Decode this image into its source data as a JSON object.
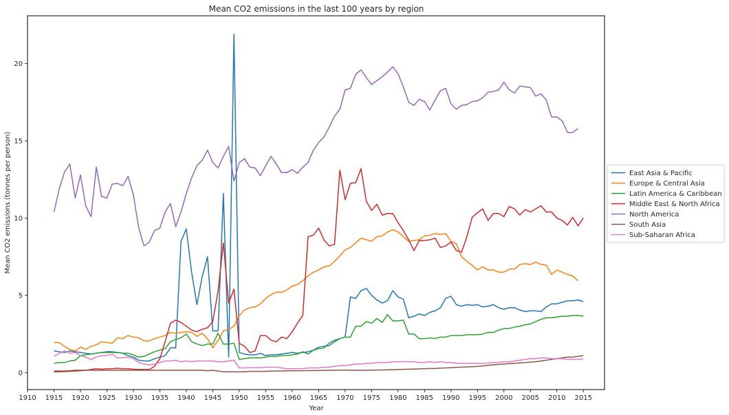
{
  "chart_data": {
    "type": "line",
    "title": "Mean CO2 emissions in the last 100 years by region",
    "xlabel": "Year",
    "ylabel": "Mean CO2 emissions (tonnes per person)",
    "xlim": [
      1910,
      2019
    ],
    "ylim": [
      -1.1,
      23.1
    ],
    "xticks": [
      1910,
      1915,
      1920,
      1925,
      1930,
      1935,
      1940,
      1945,
      1950,
      1955,
      1960,
      1965,
      1970,
      1975,
      1980,
      1985,
      1990,
      1995,
      2000,
      2005,
      2010,
      2015
    ],
    "yticks": [
      0,
      5,
      10,
      15,
      20
    ],
    "legend_position": "center-right",
    "x_start": 1915,
    "x_end": 2014,
    "series": [
      {
        "name": "East Asia & Pacific",
        "color": "#1f77b4",
        "values": [
          1.4,
          1.35,
          1.3,
          1.4,
          1.35,
          1.3,
          1.25,
          1.2,
          1.25,
          1.3,
          1.35,
          1.35,
          1.3,
          1.25,
          1.1,
          1.0,
          0.8,
          0.75,
          0.75,
          0.9,
          1.0,
          1.1,
          1.6,
          1.6,
          8.5,
          9.3,
          6.5,
          4.4,
          6.2,
          7.5,
          2.7,
          2.7,
          11.6,
          1.0,
          21.9,
          1.3,
          1.2,
          1.15,
          1.15,
          1.25,
          1.1,
          1.15,
          1.15,
          1.2,
          1.25,
          1.3,
          1.25,
          1.3,
          1.35,
          1.45,
          1.65,
          1.7,
          1.75,
          2.0,
          2.2,
          2.3,
          4.9,
          4.8,
          5.3,
          5.45,
          5.0,
          4.7,
          4.5,
          4.65,
          5.3,
          4.9,
          4.75,
          3.55,
          3.65,
          3.8,
          3.7,
          3.9,
          4.0,
          4.2,
          4.8,
          4.95,
          4.4,
          4.3,
          4.4,
          4.35,
          4.4,
          4.25,
          4.3,
          4.4,
          4.2,
          4.1,
          4.2,
          4.2,
          4.05,
          3.95,
          4.0,
          4.0,
          3.95,
          4.25,
          4.45,
          4.45,
          4.55,
          4.65,
          4.65,
          4.7,
          4.6
        ]
      },
      {
        "name": "Europe & Central Asia",
        "color": "#ff7f0e",
        "values": [
          1.95,
          1.95,
          1.7,
          1.5,
          1.4,
          1.65,
          1.5,
          1.7,
          1.8,
          2.0,
          1.95,
          1.9,
          2.25,
          2.2,
          2.4,
          2.3,
          2.25,
          2.05,
          2.05,
          2.2,
          2.3,
          2.4,
          2.6,
          2.55,
          2.6,
          2.65,
          2.6,
          2.35,
          2.55,
          2.2,
          1.6,
          2.1,
          2.7,
          2.8,
          3.0,
          3.7,
          4.05,
          4.2,
          4.25,
          4.45,
          4.8,
          5.05,
          5.2,
          5.2,
          5.35,
          5.6,
          5.7,
          5.95,
          6.25,
          6.5,
          6.65,
          6.85,
          6.9,
          7.2,
          7.55,
          7.95,
          8.1,
          8.4,
          8.7,
          8.6,
          8.5,
          8.8,
          8.85,
          9.1,
          9.25,
          9.1,
          8.8,
          8.5,
          8.55,
          8.6,
          8.85,
          8.9,
          9.0,
          8.95,
          9.0,
          8.5,
          8.35,
          7.5,
          7.2,
          6.95,
          6.65,
          6.85,
          6.65,
          6.65,
          6.5,
          6.5,
          6.7,
          6.7,
          7.0,
          7.05,
          7.0,
          7.15,
          7.0,
          6.95,
          6.35,
          6.65,
          6.5,
          6.35,
          6.25,
          5.95
        ]
      },
      {
        "name": "Latin America & Caribbean",
        "color": "#2ca02c",
        "values": [
          0.6,
          0.65,
          0.65,
          0.75,
          0.8,
          1.1,
          1.15,
          1.2,
          1.25,
          1.3,
          1.3,
          1.3,
          1.3,
          1.25,
          1.25,
          1.15,
          1.0,
          1.05,
          1.2,
          1.35,
          1.45,
          1.55,
          2.0,
          2.15,
          2.25,
          2.5,
          2.0,
          1.85,
          1.75,
          1.85,
          1.85,
          2.55,
          1.85,
          1.85,
          1.9,
          0.85,
          0.9,
          0.95,
          0.95,
          0.95,
          1.0,
          1.05,
          1.05,
          1.1,
          1.1,
          1.15,
          1.2,
          1.35,
          1.2,
          1.45,
          1.55,
          1.6,
          1.9,
          2.1,
          2.2,
          2.3,
          2.3,
          3.0,
          3.0,
          3.3,
          3.2,
          3.5,
          3.25,
          3.75,
          3.35,
          3.35,
          3.4,
          2.5,
          2.5,
          2.2,
          2.2,
          2.25,
          2.2,
          2.3,
          2.3,
          2.4,
          2.4,
          2.4,
          2.45,
          2.45,
          2.45,
          2.5,
          2.6,
          2.6,
          2.75,
          2.85,
          2.85,
          2.95,
          3.0,
          3.1,
          3.15,
          3.3,
          3.45,
          3.55,
          3.55,
          3.6,
          3.65,
          3.65,
          3.7,
          3.7,
          3.65
        ]
      },
      {
        "name": "Middle East & North Africa",
        "color": "#d62728",
        "values": [
          0.1,
          0.1,
          0.1,
          0.12,
          0.15,
          0.15,
          0.15,
          0.2,
          0.25,
          0.22,
          0.25,
          0.25,
          0.28,
          0.25,
          0.25,
          0.22,
          0.2,
          0.2,
          0.2,
          0.4,
          0.9,
          2.0,
          3.2,
          3.4,
          3.25,
          3.0,
          2.75,
          2.65,
          2.8,
          2.9,
          3.3,
          5.3,
          8.4,
          4.5,
          5.4,
          1.9,
          1.7,
          1.3,
          1.4,
          2.4,
          2.4,
          2.1,
          2.0,
          2.3,
          2.2,
          2.65,
          3.2,
          3.7,
          8.8,
          8.9,
          9.35,
          8.6,
          8.2,
          8.3,
          13.1,
          11.2,
          12.25,
          12.3,
          13.2,
          11.1,
          10.5,
          10.9,
          10.2,
          10.3,
          10.3,
          9.7,
          9.2,
          8.6,
          7.9,
          8.55,
          8.55,
          8.6,
          8.7,
          8.1,
          8.2,
          8.45,
          7.9,
          7.8,
          8.8,
          10.05,
          10.35,
          10.6,
          9.85,
          10.3,
          10.3,
          10.1,
          10.75,
          10.6,
          10.2,
          10.55,
          10.4,
          10.6,
          10.8,
          10.4,
          10.4,
          10.0,
          9.85,
          9.55,
          10.05,
          9.5,
          10.0
        ]
      },
      {
        "name": "North America",
        "color": "#9467bd",
        "values": [
          10.4,
          11.9,
          13.0,
          13.5,
          11.3,
          12.8,
          10.8,
          10.1,
          13.3,
          11.4,
          11.3,
          12.2,
          12.25,
          12.1,
          12.7,
          11.5,
          9.4,
          8.2,
          8.45,
          9.2,
          9.35,
          10.4,
          10.95,
          9.45,
          10.4,
          11.6,
          12.6,
          13.4,
          13.75,
          14.4,
          13.6,
          13.25,
          14.0,
          14.65,
          12.4,
          13.6,
          13.85,
          13.3,
          13.25,
          12.75,
          13.4,
          14.0,
          13.5,
          12.95,
          12.95,
          13.15,
          12.9,
          13.3,
          13.6,
          14.4,
          14.9,
          15.25,
          15.9,
          16.6,
          17.05,
          18.3,
          18.4,
          19.3,
          19.6,
          19.1,
          18.65,
          18.9,
          19.15,
          19.45,
          19.8,
          19.35,
          18.5,
          17.5,
          17.3,
          17.7,
          17.55,
          17.0,
          17.65,
          18.25,
          18.4,
          17.4,
          17.05,
          17.3,
          17.35,
          17.55,
          17.6,
          17.8,
          18.15,
          18.2,
          18.3,
          18.8,
          18.3,
          18.1,
          18.55,
          18.5,
          18.45,
          17.9,
          18.05,
          17.65,
          16.55,
          16.55,
          16.3,
          15.55,
          15.55,
          15.8
        ]
      },
      {
        "name": "South Asia",
        "color": "#8c564b",
        "values": [
          0.05,
          0.05,
          0.06,
          0.08,
          0.1,
          0.12,
          0.15,
          0.15,
          0.15,
          0.15,
          0.15,
          0.15,
          0.15,
          0.15,
          0.15,
          0.15,
          0.15,
          0.15,
          0.15,
          0.15,
          0.15,
          0.15,
          0.15,
          0.15,
          0.15,
          0.15,
          0.15,
          0.15,
          0.15,
          0.12,
          0.15,
          0.1,
          0.05,
          0.05,
          0.05,
          0.05,
          0.05,
          0.08,
          0.08,
          0.08,
          0.08,
          0.1,
          0.1,
          0.1,
          0.12,
          0.12,
          0.12,
          0.12,
          0.13,
          0.13,
          0.14,
          0.14,
          0.15,
          0.15,
          0.16,
          0.16,
          0.15,
          0.15,
          0.15,
          0.15,
          0.16,
          0.16,
          0.17,
          0.18,
          0.19,
          0.2,
          0.21,
          0.22,
          0.23,
          0.24,
          0.25,
          0.26,
          0.27,
          0.29,
          0.3,
          0.32,
          0.34,
          0.35,
          0.37,
          0.38,
          0.4,
          0.43,
          0.47,
          0.5,
          0.53,
          0.55,
          0.58,
          0.6,
          0.63,
          0.65,
          0.68,
          0.7,
          0.75,
          0.8,
          0.85,
          0.9,
          0.95,
          1.0,
          1.0,
          1.05,
          1.1
        ]
      },
      {
        "name": "Sub-Saharan Africa",
        "color": "#e377c2",
        "values": [
          1.05,
          1.25,
          1.4,
          1.25,
          1.3,
          1.1,
          1.0,
          0.85,
          1.0,
          1.1,
          1.1,
          1.2,
          0.95,
          0.95,
          1.0,
          0.9,
          0.65,
          0.55,
          0.5,
          0.55,
          0.65,
          0.75,
          0.75,
          0.8,
          0.7,
          0.75,
          0.7,
          0.75,
          0.75,
          0.75,
          0.75,
          0.7,
          0.7,
          0.75,
          0.8,
          0.3,
          0.3,
          0.32,
          0.32,
          0.32,
          0.35,
          0.35,
          0.35,
          0.3,
          0.25,
          0.25,
          0.25,
          0.25,
          0.3,
          0.3,
          0.3,
          0.35,
          0.35,
          0.4,
          0.45,
          0.45,
          0.5,
          0.55,
          0.55,
          0.6,
          0.6,
          0.65,
          0.65,
          0.65,
          0.7,
          0.7,
          0.7,
          0.7,
          0.7,
          0.65,
          0.65,
          0.7,
          0.65,
          0.7,
          0.65,
          0.65,
          0.6,
          0.6,
          0.6,
          0.6,
          0.6,
          0.6,
          0.62,
          0.65,
          0.65,
          0.7,
          0.7,
          0.75,
          0.8,
          0.85,
          0.9,
          0.9,
          0.95,
          0.95,
          0.9,
          0.9,
          0.9,
          0.85,
          0.85,
          0.85,
          0.9
        ]
      }
    ]
  }
}
